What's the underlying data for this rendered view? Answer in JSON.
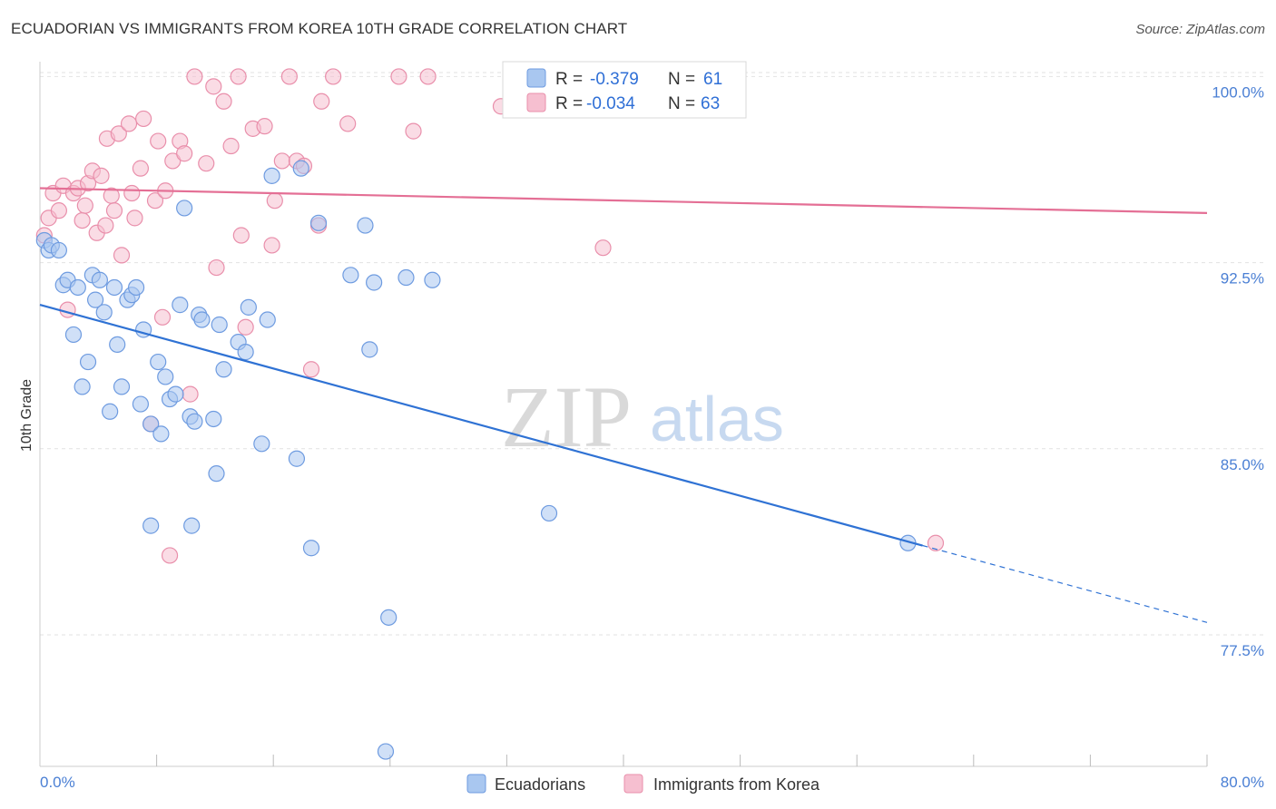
{
  "title": "ECUADORIAN VS IMMIGRANTS FROM KOREA 10TH GRADE CORRELATION CHART",
  "source": "Source: ZipAtlas.com",
  "watermark": {
    "zip": "ZIP",
    "atlas": "atlas"
  },
  "legend": {
    "r_label": "R =",
    "n_label": "N =",
    "series": [
      {
        "r": "-0.379",
        "n": "61"
      },
      {
        "r": "-0.034",
        "n": "63"
      }
    ]
  },
  "bottom_legend": [
    "Ecuadorians",
    "Immigrants from Korea"
  ],
  "colors": {
    "blue_fill": "#a9c7f0",
    "blue_stroke": "#6e9be0",
    "blue_line": "#2f72d4",
    "pink_fill": "#f6bfd0",
    "pink_stroke": "#e98fab",
    "pink_line": "#e46f95",
    "tick": "#4a7fd4"
  },
  "chart_data": {
    "type": "scatter",
    "title": "ECUADORIAN VS IMMIGRANTS FROM KOREA 10TH GRADE CORRELATION CHART",
    "xlabel": "",
    "ylabel": "10th Grade",
    "xlim": [
      0,
      80
    ],
    "ylim": [
      72.2,
      100.6
    ],
    "x_tick_labels": [
      "0.0%",
      "80.0%"
    ],
    "y_ticks": [
      77.5,
      85.0,
      92.5,
      100.0
    ],
    "y_tick_labels": [
      "77.5%",
      "85.0%",
      "92.5%",
      "100.0%"
    ],
    "grid": "horizontal dashed",
    "series": [
      {
        "name": "Ecuadorians",
        "r": -0.379,
        "n": 61,
        "trend": {
          "x0": 0,
          "y0": 90.8,
          "x1": 60.5,
          "y1": 81.1,
          "dash_to_x": 80,
          "dash_to_y": 78.0
        },
        "points": [
          [
            0.3,
            93.4
          ],
          [
            0.6,
            93.0
          ],
          [
            0.8,
            93.2
          ],
          [
            1.3,
            93.0
          ],
          [
            1.6,
            91.6
          ],
          [
            1.9,
            91.8
          ],
          [
            2.3,
            89.6
          ],
          [
            2.6,
            91.5
          ],
          [
            2.9,
            87.5
          ],
          [
            3.3,
            88.5
          ],
          [
            3.6,
            92.0
          ],
          [
            3.8,
            91.0
          ],
          [
            4.1,
            91.8
          ],
          [
            4.4,
            90.5
          ],
          [
            4.8,
            86.5
          ],
          [
            5.1,
            91.5
          ],
          [
            5.3,
            89.2
          ],
          [
            5.6,
            87.5
          ],
          [
            6.0,
            91.0
          ],
          [
            6.3,
            91.2
          ],
          [
            6.6,
            91.5
          ],
          [
            6.9,
            86.8
          ],
          [
            7.1,
            89.8
          ],
          [
            7.6,
            86.0
          ],
          [
            8.1,
            88.5
          ],
          [
            8.3,
            85.6
          ],
          [
            8.6,
            87.9
          ],
          [
            8.9,
            87.0
          ],
          [
            9.3,
            87.2
          ],
          [
            9.6,
            90.8
          ],
          [
            9.9,
            94.7
          ],
          [
            10.3,
            86.3
          ],
          [
            10.6,
            86.1
          ],
          [
            10.9,
            90.4
          ],
          [
            11.1,
            90.2
          ],
          [
            11.9,
            86.2
          ],
          [
            12.1,
            84.0
          ],
          [
            12.3,
            90.0
          ],
          [
            12.6,
            88.2
          ],
          [
            13.6,
            89.3
          ],
          [
            14.1,
            88.9
          ],
          [
            14.3,
            90.7
          ],
          [
            15.2,
            85.2
          ],
          [
            15.6,
            90.2
          ],
          [
            15.9,
            96.0
          ],
          [
            17.6,
            84.6
          ],
          [
            17.9,
            96.3
          ],
          [
            18.6,
            81.0
          ],
          [
            19.1,
            94.1
          ],
          [
            21.3,
            92.0
          ],
          [
            22.3,
            94.0
          ],
          [
            22.6,
            89.0
          ],
          [
            22.9,
            91.7
          ],
          [
            23.9,
            78.2
          ],
          [
            23.7,
            72.8
          ],
          [
            25.1,
            91.9
          ],
          [
            26.9,
            91.8
          ],
          [
            34.9,
            82.4
          ],
          [
            59.5,
            81.2
          ],
          [
            7.6,
            81.9
          ],
          [
            10.4,
            81.9
          ]
        ]
      },
      {
        "name": "Immigrants from Korea",
        "r": -0.034,
        "n": 63,
        "trend": {
          "x0": 0,
          "y0": 95.5,
          "x1": 80,
          "y1": 94.5
        },
        "points": [
          [
            0.3,
            93.6
          ],
          [
            0.6,
            94.3
          ],
          [
            0.9,
            95.3
          ],
          [
            1.3,
            94.6
          ],
          [
            1.6,
            95.6
          ],
          [
            1.9,
            90.6
          ],
          [
            2.3,
            95.3
          ],
          [
            2.6,
            95.5
          ],
          [
            2.9,
            94.2
          ],
          [
            3.1,
            94.8
          ],
          [
            3.3,
            95.7
          ],
          [
            3.6,
            96.2
          ],
          [
            3.9,
            93.7
          ],
          [
            4.2,
            96.0
          ],
          [
            4.6,
            97.5
          ],
          [
            4.9,
            95.2
          ],
          [
            5.1,
            94.6
          ],
          [
            5.4,
            97.7
          ],
          [
            5.6,
            92.8
          ],
          [
            6.1,
            98.1
          ],
          [
            6.3,
            95.3
          ],
          [
            6.9,
            96.3
          ],
          [
            7.1,
            98.3
          ],
          [
            7.6,
            86.0
          ],
          [
            7.9,
            95.0
          ],
          [
            8.1,
            97.4
          ],
          [
            8.4,
            90.3
          ],
          [
            8.6,
            95.4
          ],
          [
            8.9,
            80.7
          ],
          [
            9.1,
            96.6
          ],
          [
            9.6,
            97.4
          ],
          [
            9.9,
            96.9
          ],
          [
            10.3,
            87.2
          ],
          [
            10.6,
            100.0
          ],
          [
            11.4,
            96.5
          ],
          [
            11.9,
            99.6
          ],
          [
            12.1,
            92.3
          ],
          [
            12.6,
            99.0
          ],
          [
            13.1,
            97.2
          ],
          [
            13.6,
            100.0
          ],
          [
            14.1,
            89.9
          ],
          [
            14.6,
            97.9
          ],
          [
            15.4,
            98.0
          ],
          [
            15.9,
            93.2
          ],
          [
            16.1,
            95.0
          ],
          [
            16.6,
            96.6
          ],
          [
            17.1,
            100.0
          ],
          [
            17.6,
            96.6
          ],
          [
            18.1,
            96.4
          ],
          [
            18.6,
            88.2
          ],
          [
            19.1,
            94.0
          ],
          [
            19.3,
            99.0
          ],
          [
            20.1,
            100.0
          ],
          [
            21.1,
            98.1
          ],
          [
            24.6,
            100.0
          ],
          [
            25.6,
            97.8
          ],
          [
            26.6,
            100.0
          ],
          [
            31.6,
            98.8
          ],
          [
            38.6,
            93.1
          ],
          [
            61.4,
            81.2
          ],
          [
            4.5,
            94.0
          ],
          [
            6.5,
            94.3
          ],
          [
            13.8,
            93.6
          ]
        ]
      }
    ]
  }
}
